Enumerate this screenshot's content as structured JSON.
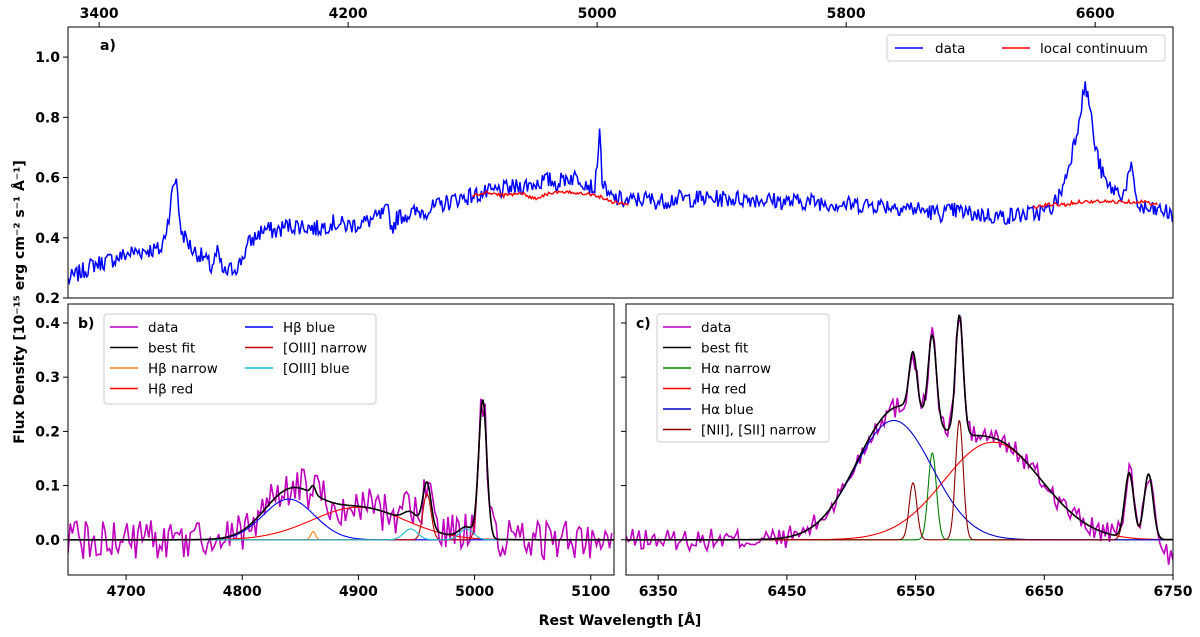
{
  "figure": {
    "ylabel": "Flux Density [10⁻¹⁵ erg cm⁻² s⁻¹ Å⁻¹]",
    "xlabel": "Rest Wavelength [Å]"
  },
  "chart_data": [
    {
      "panel": "a)",
      "type": "line",
      "xlim": [
        3300,
        6850
      ],
      "ylim": [
        0.2,
        1.1
      ],
      "x_ticks": [
        3400,
        4200,
        5000,
        5800,
        6600
      ],
      "y_ticks": [
        0.2,
        0.4,
        0.6,
        0.8,
        1.0
      ],
      "y_tick_labels": [
        "0.2",
        "0.4",
        "0.6",
        "0.8",
        "1.0"
      ],
      "legend": {
        "placement": "top-right",
        "entries": [
          "data",
          "local continuum"
        ]
      },
      "series": [
        {
          "name": "data",
          "color": "#0000ff",
          "noise": 0.018,
          "x": [
            3300,
            3380,
            3450,
            3500,
            3560,
            3600,
            3620,
            3640,
            3650,
            3660,
            3700,
            3740,
            3760,
            3780,
            3800,
            3850,
            3880,
            3900,
            3930,
            3970,
            4000,
            4050,
            4100,
            4150,
            4200,
            4250,
            4300,
            4330,
            4340,
            4360,
            4400,
            4450,
            4500,
            4550,
            4600,
            4700,
            4800,
            4830,
            4850,
            4870,
            4900,
            4940,
            4970,
            4990,
            5000,
            5007,
            5015,
            5030,
            5060,
            5100,
            5150,
            5200,
            5250,
            5300,
            5400,
            5500,
            5600,
            5700,
            5800,
            5900,
            6000,
            6100,
            6150,
            6200,
            6300,
            6400,
            6450,
            6480,
            6500,
            6520,
            6540,
            6555,
            6565,
            6575,
            6585,
            6600,
            6620,
            6640,
            6660,
            6690,
            6700,
            6715,
            6725,
            6740,
            6780,
            6820,
            6850
          ],
          "y": [
            0.26,
            0.31,
            0.33,
            0.35,
            0.36,
            0.36,
            0.45,
            0.58,
            0.6,
            0.43,
            0.36,
            0.33,
            0.3,
            0.35,
            0.28,
            0.31,
            0.38,
            0.4,
            0.43,
            0.42,
            0.44,
            0.44,
            0.43,
            0.45,
            0.44,
            0.45,
            0.47,
            0.49,
            0.43,
            0.47,
            0.48,
            0.49,
            0.51,
            0.53,
            0.54,
            0.56,
            0.58,
            0.59,
            0.59,
            0.58,
            0.6,
            0.6,
            0.58,
            0.56,
            0.62,
            0.79,
            0.6,
            0.54,
            0.53,
            0.52,
            0.53,
            0.52,
            0.53,
            0.53,
            0.53,
            0.53,
            0.52,
            0.52,
            0.51,
            0.51,
            0.5,
            0.48,
            0.49,
            0.48,
            0.47,
            0.48,
            0.49,
            0.53,
            0.58,
            0.66,
            0.75,
            0.84,
            0.9,
            0.88,
            0.82,
            0.7,
            0.62,
            0.57,
            0.56,
            0.54,
            0.58,
            0.63,
            0.57,
            0.5,
            0.49,
            0.49,
            0.47
          ]
        },
        {
          "name": "local continuum",
          "color": "#ff0000",
          "noise": 0.003,
          "x": [
            4600,
            4650,
            4700,
            4750,
            4800,
            4850,
            4900,
            4950,
            5000,
            5050,
            5100
          ],
          "y": [
            0.54,
            0.55,
            0.54,
            0.55,
            0.53,
            0.55,
            0.55,
            0.55,
            0.54,
            0.52,
            0.51
          ],
          "x2": [
            6400,
            6450,
            6500,
            6550,
            6600,
            6650,
            6700,
            6750,
            6800
          ],
          "y2": [
            0.5,
            0.51,
            0.51,
            0.52,
            0.52,
            0.52,
            0.52,
            0.52,
            0.51
          ]
        }
      ]
    },
    {
      "panel": "b)",
      "type": "line",
      "xlim": [
        4650,
        5120
      ],
      "ylim": [
        -0.065,
        0.435
      ],
      "x_ticks": [
        4700,
        4800,
        4900,
        5000,
        5100
      ],
      "y_ticks": [
        0.0,
        0.1,
        0.2,
        0.3,
        0.4
      ],
      "y_tick_labels": [
        "0.0",
        "0.1",
        "0.2",
        "0.3",
        "0.4"
      ],
      "legend": {
        "placement": "top-left",
        "entries": [
          "data",
          "best fit",
          "Hβ narrow",
          "Hβ red",
          "Hβ blue",
          "[OIII] narrow",
          "[OIII] blue"
        ]
      },
      "series": [
        {
          "name": "data",
          "color": "#bf00bf",
          "kind": "data_noise",
          "noise": 0.022
        },
        {
          "name": "best fit",
          "color": "#000000",
          "kind": "sum"
        },
        {
          "name": "Hβ narrow",
          "color": "#ff7f0e",
          "gaussians": [
            [
              4861,
              0.015,
              2.0
            ]
          ]
        },
        {
          "name": "Hβ red",
          "color": "#ff0000",
          "gaussians": [
            [
              4900,
              0.06,
              40
            ]
          ]
        },
        {
          "name": "Hβ blue",
          "color": "#0000ff",
          "gaussians": [
            [
              4840,
              0.075,
              22
            ]
          ]
        },
        {
          "name": "[OIII] narrow",
          "color": "#c00000",
          "gaussians": [
            [
              4959,
              0.085,
              3.5
            ],
            [
              5007,
              0.255,
              3.5
            ]
          ]
        },
        {
          "name": "[OIII] blue",
          "color": "#17becf",
          "gaussians": [
            [
              4945,
              0.02,
              6
            ],
            [
              4993,
              0.02,
              6
            ]
          ]
        }
      ]
    },
    {
      "panel": "c)",
      "type": "line",
      "xlim": [
        6325,
        6750
      ],
      "ylim": [
        -0.065,
        0.435
      ],
      "x_ticks": [
        6350,
        6450,
        6550,
        6650,
        6750
      ],
      "legend": {
        "placement": "top-left",
        "entries": [
          "data",
          "best fit",
          "Hα narrow",
          "Hα red",
          "Hα blue",
          "[NII], [SII] narrow"
        ]
      },
      "series": [
        {
          "name": "data",
          "color": "#bf00bf",
          "kind": "data_noise",
          "noise": 0.012
        },
        {
          "name": "best fit",
          "color": "#000000",
          "kind": "sum"
        },
        {
          "name": "Hα narrow",
          "color": "#008000",
          "gaussians": [
            [
              6563,
              0.16,
              3.2
            ]
          ]
        },
        {
          "name": "Hα red",
          "color": "#ff0000",
          "gaussians": [
            [
              6610,
              0.18,
              38
            ]
          ]
        },
        {
          "name": "Hα blue",
          "color": "#0000cc",
          "gaussians": [
            [
              6533,
              0.22,
              30
            ]
          ]
        },
        {
          "name": "[NII], [SII] narrow",
          "color": "#8b0000",
          "gaussians": [
            [
              6548,
              0.105,
              3.0
            ],
            [
              6584,
              0.22,
              3.0
            ],
            [
              6716,
              0.12,
              3.5
            ],
            [
              6731,
              0.12,
              3.5
            ]
          ]
        }
      ]
    }
  ]
}
